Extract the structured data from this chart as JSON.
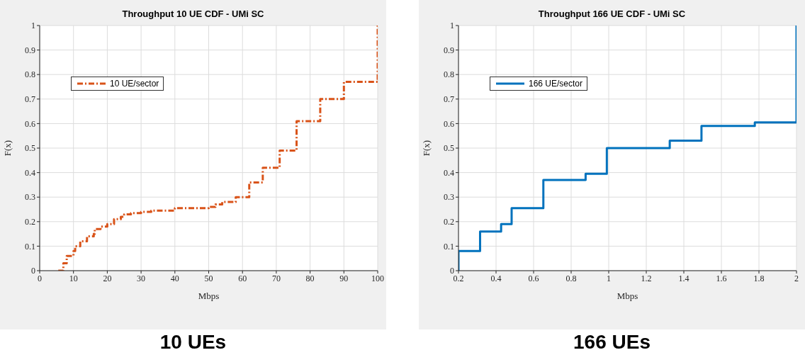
{
  "chart_data": [
    {
      "type": "step",
      "title": "Throughput 10 UE CDF - UMi SC",
      "xlabel": "Mbps",
      "ylabel": "F(x)",
      "annotations": [
        "10 UEs"
      ],
      "xlim": [
        0,
        100
      ],
      "xticks": [
        0,
        10,
        20,
        30,
        40,
        50,
        60,
        70,
        80,
        90,
        100
      ],
      "ylim": [
        0,
        1
      ],
      "yticks": [
        0,
        0.1,
        0.2,
        0.3,
        0.4,
        0.5,
        0.6,
        0.7,
        0.8,
        0.9,
        1
      ],
      "grid": true,
      "legend": "top left",
      "line_style": "dashed",
      "series": [
        {
          "name": "10 UE/sector",
          "color": "#d95319",
          "x": [
            5.5,
            7,
            8,
            10,
            10.5,
            12,
            14,
            16,
            16.3,
            18,
            20,
            22,
            24,
            25,
            27,
            30,
            33,
            40,
            50,
            52,
            54,
            58,
            62,
            66,
            71,
            76,
            83,
            90,
            100
          ],
          "values": [
            0,
            0.03,
            0.06,
            0.08,
            0.1,
            0.12,
            0.14,
            0.15,
            0.17,
            0.18,
            0.19,
            0.21,
            0.22,
            0.23,
            0.235,
            0.24,
            0.245,
            0.255,
            0.26,
            0.27,
            0.28,
            0.3,
            0.36,
            0.42,
            0.49,
            0.61,
            0.7,
            0.77,
            1
          ]
        }
      ]
    },
    {
      "type": "step",
      "title": "Throughput 166 UE CDF - UMi SC",
      "xlabel": "Mbps",
      "ylabel": "F(x)",
      "annotations": [
        "166 UEs"
      ],
      "xlim": [
        0.2,
        2
      ],
      "xticks": [
        0.2,
        0.4,
        0.6,
        0.8,
        1,
        1.2,
        1.4,
        1.6,
        1.8,
        2
      ],
      "ylim": [
        0,
        1
      ],
      "yticks": [
        0,
        0.1,
        0.2,
        0.3,
        0.4,
        0.5,
        0.6,
        0.7,
        0.8,
        0.9,
        1
      ],
      "grid": true,
      "legend": "top left",
      "line_style": "solid",
      "series": [
        {
          "name": "166 UE/sector",
          "color": "#0072bd",
          "x": [
            0.2,
            0.2,
            0.315,
            0.427,
            0.483,
            0.652,
            0.877,
            0.99,
            1.325,
            1.494,
            1.778,
            2
          ],
          "values": [
            0,
            0.08,
            0.16,
            0.19,
            0.255,
            0.37,
            0.395,
            0.5,
            0.53,
            0.59,
            0.605,
            1
          ]
        }
      ]
    }
  ]
}
